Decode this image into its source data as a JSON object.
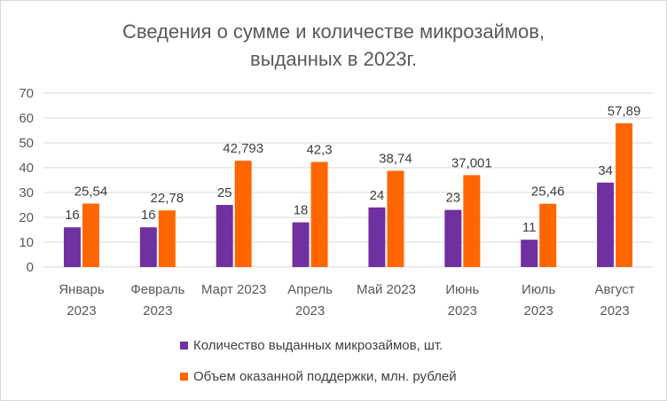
{
  "chart_data": {
    "type": "bar",
    "title_line1": "Сведения о сумме и количестве микрозаймов,",
    "title_line2": "выданных в 2023г.",
    "categories": [
      [
        "Январь",
        "2023"
      ],
      [
        "Февраль",
        "2023"
      ],
      [
        "Март 2023"
      ],
      [
        "Апрель",
        "2023"
      ],
      [
        "Май 2023"
      ],
      [
        "Июнь",
        "2023"
      ],
      [
        "Июль",
        "2023"
      ],
      [
        "Август",
        "2023"
      ]
    ],
    "series": [
      {
        "name": "Количество выданных микрозаймов, шт.",
        "color": "#7030a0",
        "values": [
          16,
          16,
          25,
          18,
          24,
          23,
          11,
          34
        ],
        "labels": [
          "16",
          "16",
          "25",
          "18",
          "24",
          "23",
          "11",
          "34"
        ]
      },
      {
        "name": "Объем оказанной поддержки, млн. рублей",
        "color": "#ff6600",
        "values": [
          25.54,
          22.78,
          42.793,
          42.3,
          38.74,
          37.001,
          25.46,
          57.89
        ],
        "labels": [
          "25,54",
          "22,78",
          "42,793",
          "42,3",
          "38,74",
          "37,001",
          "25,46",
          "57,89"
        ]
      }
    ],
    "ylim": [
      0,
      70
    ],
    "yticks": [
      0,
      10,
      20,
      30,
      40,
      50,
      60,
      70
    ],
    "grid": true,
    "legend_position": "bottom",
    "colors": {
      "grid": "#d9d9d9",
      "axis_text": "#595959",
      "label_text": "#404040"
    }
  }
}
